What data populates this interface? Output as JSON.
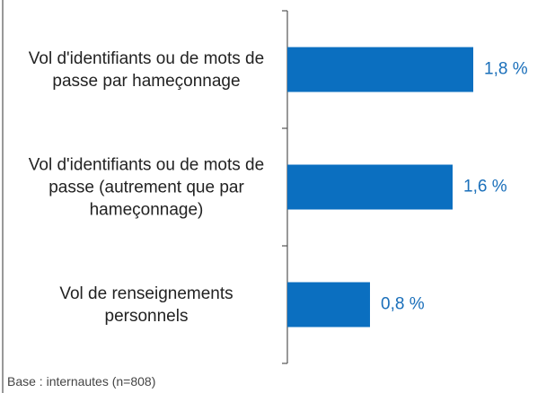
{
  "chart_data": {
    "type": "bar",
    "orientation": "horizontal",
    "categories": [
      "Vol d'identifiants ou de mots de passe par hameçonnage",
      "Vol d'identifiants ou de mots de passe (autrement que par hameçonnage)",
      "Vol de renseignements personnels"
    ],
    "values": [
      1.8,
      1.6,
      0.8
    ],
    "value_labels": [
      "1,8 %",
      "1,6 %",
      "0,8 %"
    ],
    "color": "#0b6fc0",
    "note": "Base : internautes (n=808)"
  }
}
